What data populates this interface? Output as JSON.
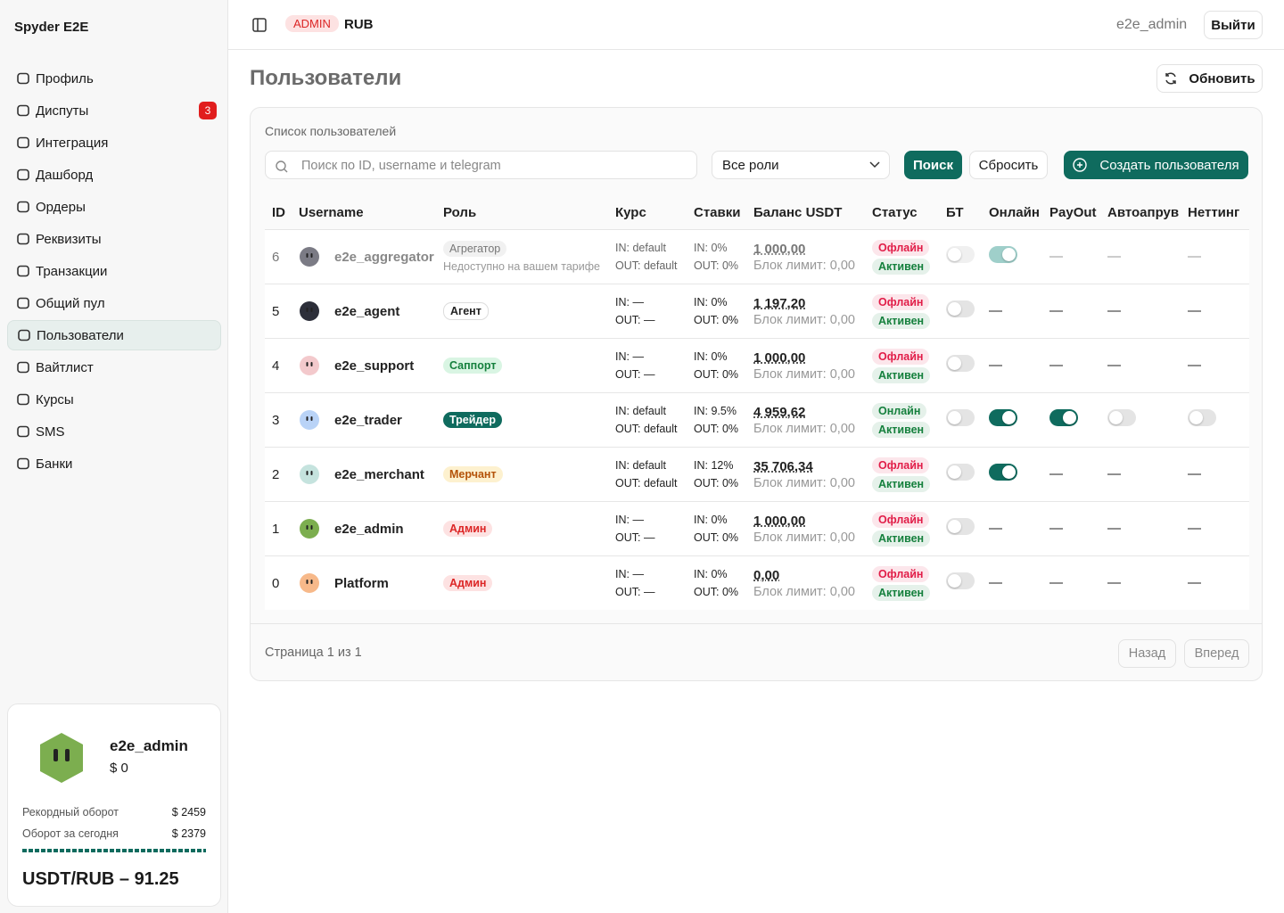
{
  "sidebar": {
    "brand": "Spyder E2E",
    "nav": [
      {
        "label": "Профиль"
      },
      {
        "label": "Диспуты",
        "badge": "3"
      },
      {
        "label": "Интеграция"
      },
      {
        "label": "Дашборд"
      },
      {
        "label": "Ордеры"
      },
      {
        "label": "Реквизиты"
      },
      {
        "label": "Транзакции"
      },
      {
        "label": "Общий пул"
      },
      {
        "label": "Пользователи",
        "active": true
      },
      {
        "label": "Вайтлист"
      },
      {
        "label": "Курсы"
      },
      {
        "label": "SMS"
      },
      {
        "label": "Банки"
      }
    ]
  },
  "profile": {
    "name": "e2e_admin",
    "balance": "$ 0",
    "record_label": "Рекордный оборот",
    "record": "$ 2459",
    "today_label": "Оборот за сегодня",
    "today": "$ 2379",
    "rate": "USDT/RUB – 91.25"
  },
  "header": {
    "role_badge": "ADMIN",
    "currency": "RUB",
    "user": "e2e_admin",
    "logout": "Выйти"
  },
  "page": {
    "title": "Пользователи",
    "refresh": "Обновить"
  },
  "card": {
    "title": "Список пользователей",
    "search_placeholder": "Поиск по ID, username и telegram",
    "role_filter": "Все роли",
    "search": "Поиск",
    "reset": "Сбросить",
    "create": "Создать пользователя"
  },
  "table": {
    "columns": [
      "ID",
      "Username",
      "Роль",
      "Курс",
      "Ставки",
      "Баланс USDT",
      "Статус",
      "БТ",
      "Онлайн",
      "PayOut",
      "Автоапрув",
      "Неттинг"
    ],
    "rows": [
      {
        "id": "6",
        "username": "e2e_aggregator",
        "avatar_color": "#7b7b85",
        "role": "Агрегатор",
        "role_bg": "#f1f1f1",
        "role_fg": "#777777",
        "role_note": "Недоступно на вашем тарифе",
        "rate_in": "IN: default",
        "rate_out": "OUT: default",
        "stake_in": "IN: 0%",
        "stake_out": "OUT: 0%",
        "balance": "1 000,00",
        "block": "Блок лимит: 0,00",
        "status": "Офлайн",
        "status_color": "#e11d48",
        "state": "Активен",
        "disabled": true,
        "bt": false,
        "online": true,
        "payout": "—",
        "auto": "—",
        "netting": "—"
      },
      {
        "id": "5",
        "username": "e2e_agent",
        "avatar_color": "#2d2f3a",
        "role": "Агент",
        "role_bg": "#ffffff",
        "role_fg": "#222222",
        "rate_in": "IN: —",
        "rate_out": "OUT: —",
        "stake_in": "IN: 0%",
        "stake_out": "OUT: 0%",
        "balance": "1 197,20",
        "block": "Блок лимит: 0,00",
        "status": "Офлайн",
        "status_color": "#e11d48",
        "state": "Активен",
        "bt": false,
        "online": "—",
        "payout": "—",
        "auto": "—",
        "netting": "—"
      },
      {
        "id": "4",
        "username": "e2e_support",
        "avatar_color": "#f3c9cc",
        "role": "Саппорт",
        "role_bg": "#d9f5e3",
        "role_fg": "#15803d",
        "rate_in": "IN: —",
        "rate_out": "OUT: —",
        "stake_in": "IN: 0%",
        "stake_out": "OUT: 0%",
        "balance": "1 000,00",
        "block": "Блок лимит: 0,00",
        "status": "Офлайн",
        "status_color": "#e11d48",
        "state": "Активен",
        "bt": false,
        "online": "—",
        "payout": "—",
        "auto": "—",
        "netting": "—"
      },
      {
        "id": "3",
        "username": "e2e_trader",
        "avatar_color": "#b9d3f7",
        "role": "Трейдер",
        "role_bg": "#0f6b5e",
        "role_fg": "#ffffff",
        "rate_in": "IN: default",
        "rate_out": "OUT: default",
        "stake_in": "IN: 9.5%",
        "stake_out": "OUT: 0%",
        "balance": "4 959,62",
        "block": "Блок лимит: 0,00",
        "status": "Онлайн",
        "status_color": "#15803d",
        "state": "Активен",
        "bt": false,
        "online": true,
        "payout": true,
        "auto": false,
        "netting": false
      },
      {
        "id": "2",
        "username": "e2e_merchant",
        "avatar_color": "#c5e3de",
        "role": "Мерчант",
        "role_bg": "#fdf1cf",
        "role_fg": "#b45309",
        "rate_in": "IN: default",
        "rate_out": "OUT: default",
        "stake_in": "IN: 12%",
        "stake_out": "OUT: 0%",
        "balance": "35 706,34",
        "block": "Блок лимит: 0,00",
        "status": "Офлайн",
        "status_color": "#e11d48",
        "state": "Активен",
        "bt": false,
        "online": true,
        "payout": "—",
        "auto": "—",
        "netting": "—"
      },
      {
        "id": "1",
        "username": "e2e_admin",
        "avatar_color": "#7cae4f",
        "role": "Админ",
        "role_bg": "#fde2e2",
        "role_fg": "#dc2626",
        "rate_in": "IN: —",
        "rate_out": "OUT: —",
        "stake_in": "IN: 0%",
        "stake_out": "OUT: 0%",
        "balance": "1 000,00",
        "block": "Блок лимит: 0,00",
        "status": "Офлайн",
        "status_color": "#e11d48",
        "state": "Активен",
        "bt": false,
        "online": "—",
        "payout": "—",
        "auto": "—",
        "netting": "—"
      },
      {
        "id": "0",
        "username": "Platform",
        "avatar_color": "#f7b98a",
        "role": "Админ",
        "role_bg": "#fde2e2",
        "role_fg": "#dc2626",
        "rate_in": "IN: —",
        "rate_out": "OUT: —",
        "stake_in": "IN: 0%",
        "stake_out": "OUT: 0%",
        "balance": "0,00",
        "block": "Блок лимит: 0,00",
        "status": "Офлайн",
        "status_color": "#e11d48",
        "state": "Активен",
        "bt": false,
        "online": "—",
        "payout": "—",
        "auto": "—",
        "netting": "—"
      }
    ]
  },
  "pagination": {
    "info": "Страница 1 из 1",
    "prev": "Назад",
    "next": "Вперед"
  }
}
